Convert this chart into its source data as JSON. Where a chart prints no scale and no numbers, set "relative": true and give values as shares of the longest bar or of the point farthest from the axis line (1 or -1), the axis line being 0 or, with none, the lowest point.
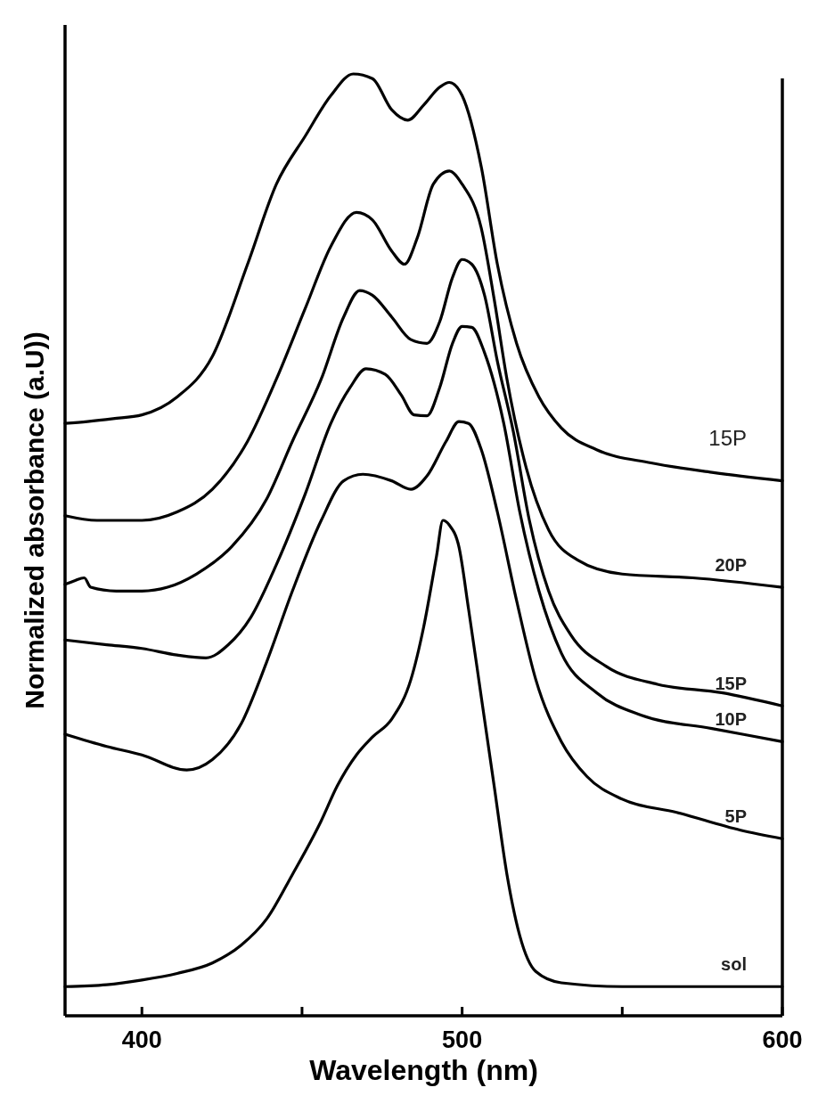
{
  "chart_data": {
    "type": "line",
    "xlabel": "Wavelength (nm)",
    "ylabel": "Normalized absorbance (a.U))",
    "relative": true,
    "tick_labels": "x",
    "xlim": [
      376,
      600
    ],
    "xticks": [
      400,
      {
        "value": 450,
        "label": null
      },
      500,
      {
        "value": 550,
        "label": null
      },
      600
    ],
    "series": [
      {
        "name": "sol",
        "color": "#000000",
        "x": [
          376,
          389,
          400,
          411,
          422,
          431,
          439,
          447,
          456,
          461,
          467,
          472,
          478,
          484,
          488,
          492,
          494,
          496,
          499,
          502,
          506,
          510,
          514,
          518,
          523,
          531,
          550,
          578,
          600
        ],
        "values": [
          0.031,
          0.033,
          0.038,
          0.045,
          0.056,
          0.075,
          0.103,
          0.15,
          0.207,
          0.244,
          0.277,
          0.296,
          0.315,
          0.357,
          0.413,
          0.488,
          0.526,
          0.521,
          0.498,
          0.432,
          0.338,
          0.244,
          0.15,
          0.085,
          0.047,
          0.035,
          0.031,
          0.031,
          0.031
        ]
      },
      {
        "name": "5P",
        "color": "#000000",
        "x": [
          376,
          389,
          400,
          414,
          422,
          431,
          439,
          447,
          456,
          463,
          469,
          478,
          484,
          489,
          495,
          499,
          502,
          506,
          511,
          517,
          523,
          531,
          539,
          550,
          567,
          587,
          600
        ],
        "values": [
          0.299,
          0.286,
          0.277,
          0.261,
          0.272,
          0.31,
          0.376,
          0.451,
          0.526,
          0.568,
          0.575,
          0.568,
          0.559,
          0.573,
          0.61,
          0.631,
          0.629,
          0.601,
          0.535,
          0.441,
          0.357,
          0.291,
          0.254,
          0.23,
          0.216,
          0.197,
          0.188
        ]
      },
      {
        "name": "10P",
        "color": "#000000",
        "x": [
          376,
          389,
          400,
          411,
          420,
          427,
          434,
          442,
          451,
          459,
          465,
          470,
          476,
          481,
          485,
          489,
          493,
          497,
          500,
          503,
          507,
          513,
          518,
          524,
          531,
          542,
          556,
          578,
          600
        ],
        "values": [
          0.399,
          0.394,
          0.39,
          0.383,
          0.38,
          0.394,
          0.423,
          0.479,
          0.554,
          0.629,
          0.667,
          0.687,
          0.681,
          0.659,
          0.638,
          0.637,
          0.667,
          0.714,
          0.732,
          0.731,
          0.704,
          0.629,
          0.535,
          0.451,
          0.385,
          0.343,
          0.319,
          0.305,
          0.291
        ]
      },
      {
        "name": "15P",
        "color": "#000000",
        "x": [
          376,
          379,
          382,
          384,
          392,
          400,
          408,
          417,
          428,
          439,
          447,
          456,
          463,
          468,
          472,
          478,
          484,
          489,
          493,
          497,
          500,
          503,
          507,
          511,
          516,
          521,
          527,
          534,
          545,
          561,
          581,
          600
        ],
        "values": [
          0.458,
          0.462,
          0.465,
          0.455,
          0.451,
          0.451,
          0.455,
          0.469,
          0.498,
          0.549,
          0.61,
          0.676,
          0.742,
          0.77,
          0.765,
          0.742,
          0.718,
          0.714,
          0.737,
          0.784,
          0.803,
          0.798,
          0.765,
          0.695,
          0.62,
          0.526,
          0.451,
          0.404,
          0.371,
          0.352,
          0.343,
          0.329
        ]
      },
      {
        "name": "20P",
        "color": "#000000",
        "x": [
          376,
          386,
          400,
          411,
          422,
          433,
          442,
          451,
          459,
          467,
          472,
          478,
          482,
          486,
          491,
          496,
          500,
          506,
          510,
          514,
          520,
          527,
          536,
          550,
          572,
          600
        ],
        "values": [
          0.531,
          0.526,
          0.526,
          0.535,
          0.559,
          0.61,
          0.676,
          0.751,
          0.817,
          0.853,
          0.845,
          0.812,
          0.798,
          0.826,
          0.883,
          0.897,
          0.883,
          0.836,
          0.761,
          0.676,
          0.582,
          0.516,
          0.484,
          0.469,
          0.465,
          0.455
        ]
      },
      {
        "name": "15P",
        "color": "#000000",
        "x": [
          376,
          383,
          391,
          400,
          411,
          422,
          433,
          442,
          451,
          459,
          466,
          472,
          478,
          483,
          488,
          493,
          496,
          500,
          506,
          511,
          517,
          524,
          531,
          542,
          559,
          578,
          600
        ],
        "values": [
          0.629,
          0.631,
          0.634,
          0.638,
          0.657,
          0.7,
          0.798,
          0.883,
          0.934,
          0.977,
          1,
          0.995,
          0.962,
          0.951,
          0.967,
          0.986,
          0.991,
          0.977,
          0.901,
          0.798,
          0.714,
          0.657,
          0.624,
          0.601,
          0.587,
          0.577,
          0.568
        ]
      }
    ]
  }
}
